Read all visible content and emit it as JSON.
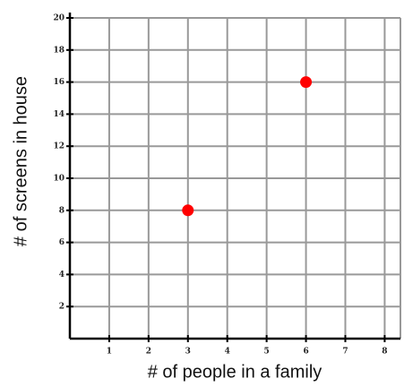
{
  "chart_data": {
    "type": "scatter",
    "x_label": "# of people in a family",
    "y_label": "# of screens in house",
    "x": [
      3,
      6
    ],
    "values": [
      8,
      16
    ],
    "color": "#ff0000",
    "xlim": [
      0,
      8.4
    ],
    "ylim": [
      0,
      20
    ],
    "xticks": [
      1,
      2,
      3,
      4,
      5,
      6,
      7,
      8
    ],
    "yticks": [
      2,
      4,
      6,
      8,
      10,
      12,
      14,
      16,
      18,
      20
    ],
    "grid": true
  }
}
